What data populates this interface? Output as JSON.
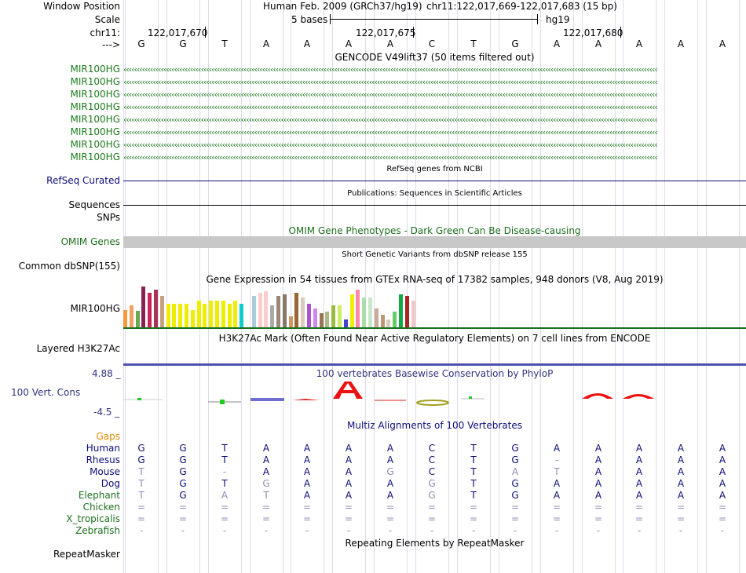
{
  "header": {
    "window_position_label": "Window Position",
    "scale_label": "Scale",
    "chrom_label": "chr11:",
    "arrow_label": "--->",
    "assembly": "Human Feb. 2009 (GRCh37/hg19)",
    "position": "chr11:122,017,669-122,017,683 (15 bp)",
    "scale_text": "5 bases",
    "db": "hg19",
    "coord_ticks": [
      "122,017,670",
      "122,017,675",
      "122,017,680"
    ]
  },
  "bases": [
    "G",
    "G",
    "T",
    "A",
    "A",
    "A",
    "A",
    "C",
    "T",
    "G",
    "A",
    "A",
    "A",
    "A",
    "A"
  ],
  "gencode": {
    "title": "GENCODE V49lift37 (50 items filtered out)",
    "items": [
      "MIR100HG",
      "MIR100HG",
      "MIR100HG",
      "MIR100HG",
      "MIR100HG",
      "MIR100HG",
      "MIR100HG",
      "MIR100HG"
    ],
    "color": "#1c7a1c"
  },
  "refseq": {
    "title": "RefSeq genes from NCBI",
    "label": "RefSeq Curated",
    "color": "#0c0c78"
  },
  "publications": {
    "title": "Publications: Sequences in Scientific Articles",
    "label": "Sequences"
  },
  "snps_label": "SNPs",
  "omim": {
    "title": "OMIM Gene Phenotypes - Dark Green Can Be Disease-causing",
    "label": "OMIM Genes",
    "color": "#1c6e1c"
  },
  "dbsnp": {
    "title": "Short Genetic Variants from dbSNP release 155",
    "label": "Common dbSNP(155)"
  },
  "gtex": {
    "title": "Gene Expression in 54 tissues from GTEx RNA-seq of 17382 samples, 948 donors (V8, Aug 2019)",
    "label": "MIR100HG"
  },
  "h3k27ac": {
    "title": "H3K27Ac Mark (Often Found Near Active Regulatory Elements) on 7 cell lines from ENCODE",
    "label": "Layered H3K27Ac"
  },
  "phylop": {
    "title": "100 vertebrates Basewise Conservation by PhyloP",
    "label": "100 Vert. Cons",
    "max": "4.88 _",
    "min": "-4.5 _",
    "color": "#333380"
  },
  "multiz": {
    "title": "Multiz Alignments of 100 Vertebrates",
    "gaps_label": "Gaps",
    "species": [
      {
        "name": "Human",
        "bases": [
          "G",
          "G",
          "T",
          "A",
          "A",
          "A",
          "A",
          "C",
          "T",
          "G",
          "A",
          "A",
          "A",
          "A",
          "A"
        ]
      },
      {
        "name": "Rhesus",
        "bases": [
          "G",
          "G",
          "T",
          "A",
          "A",
          "A",
          "A",
          "C",
          "T",
          "G",
          "-",
          "A",
          "A",
          "A",
          "A"
        ]
      },
      {
        "name": "Mouse",
        "bases": [
          "T",
          "G",
          "-",
          "A",
          "A",
          "A",
          "G",
          "C",
          "T",
          "A",
          "T",
          "A",
          "A",
          "A",
          "A"
        ]
      },
      {
        "name": "Dog",
        "bases": [
          "T",
          "G",
          "T",
          "G",
          "A",
          "A",
          "A",
          "G",
          "T",
          "G",
          "A",
          "A",
          "A",
          "A",
          "A"
        ]
      },
      {
        "name": "Elephant",
        "bases": [
          "T",
          "G",
          "A",
          "T",
          "A",
          "A",
          "A",
          "G",
          "T",
          "G",
          "A",
          "A",
          "A",
          "A",
          "A"
        ]
      },
      {
        "name": "Chicken",
        "bases": [
          "=",
          "=",
          "=",
          "=",
          "=",
          "=",
          "=",
          "=",
          "=",
          "=",
          "=",
          "=",
          "=",
          "=",
          "="
        ]
      },
      {
        "name": "X_tropicalis",
        "bases": [
          "=",
          "=",
          "=",
          "=",
          "=",
          "=",
          "=",
          "=",
          "=",
          "=",
          "=",
          "=",
          "=",
          "=",
          "="
        ]
      },
      {
        "name": "Zebrafish",
        "bases": [
          "-",
          "-",
          "-",
          "-",
          "-",
          "-",
          "-",
          "-",
          "-",
          "-",
          "-",
          "-",
          "-",
          "-",
          "-"
        ]
      }
    ]
  },
  "repeatmasker": {
    "title": "Repeating Elements by RepeatMasker",
    "label": "RepeatMasker"
  },
  "colors": {
    "navy": "#0c0c78",
    "green": "#1c7a1c",
    "orange": "#e08a00",
    "gray": "#8c8cb4",
    "highlight": "#c8c8c8"
  }
}
